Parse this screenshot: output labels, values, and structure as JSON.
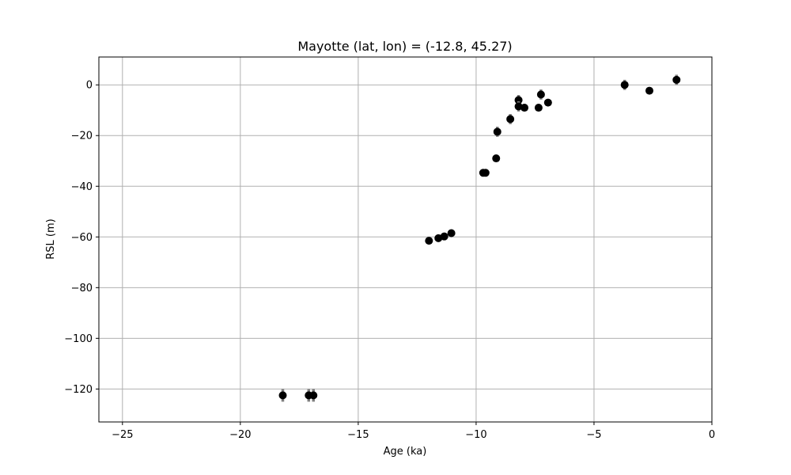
{
  "chart_data": {
    "type": "scatter",
    "title": "Mayotte (lat, lon) = (-12.8, 45.27)",
    "xlabel": "Age (ka)",
    "ylabel": "RSL (m)",
    "xlim": [
      -26,
      0
    ],
    "ylim": [
      -133,
      11
    ],
    "xticks": [
      -25,
      -20,
      -15,
      -10,
      -5,
      0
    ],
    "yticks": [
      -120,
      -100,
      -80,
      -60,
      -40,
      -20,
      0
    ],
    "grid": true,
    "marker_color": "#000000",
    "errorbar_color": "#808080",
    "points": [
      {
        "x": -18.2,
        "y": -122.5,
        "err": 2.5
      },
      {
        "x": -17.1,
        "y": -122.5,
        "err": 2.5
      },
      {
        "x": -16.9,
        "y": -122.5,
        "err": 2.5
      },
      {
        "x": -12.0,
        "y": -61.5,
        "err": 0.8
      },
      {
        "x": -11.6,
        "y": -60.5,
        "err": 0.8
      },
      {
        "x": -11.35,
        "y": -59.8,
        "err": 0.8
      },
      {
        "x": -11.05,
        "y": -58.5,
        "err": 0.8
      },
      {
        "x": -9.7,
        "y": -34.7,
        "err": 1.5
      },
      {
        "x": -9.6,
        "y": -34.7,
        "err": 1.5
      },
      {
        "x": -9.15,
        "y": -29.0,
        "err": 0.8
      },
      {
        "x": -9.1,
        "y": -18.5,
        "err": 2.0
      },
      {
        "x": -8.55,
        "y": -13.5,
        "err": 2.0
      },
      {
        "x": -8.2,
        "y": -6.0,
        "err": 2.0
      },
      {
        "x": -8.2,
        "y": -8.5,
        "err": 2.0
      },
      {
        "x": -7.95,
        "y": -9.0,
        "err": 0.8
      },
      {
        "x": -7.35,
        "y": -9.0,
        "err": 0.8
      },
      {
        "x": -7.25,
        "y": -3.8,
        "err": 2.0
      },
      {
        "x": -6.95,
        "y": -7.0,
        "err": 0.8
      },
      {
        "x": -3.7,
        "y": 0.0,
        "err": 2.0
      },
      {
        "x": -2.65,
        "y": -2.3,
        "err": 0.8
      },
      {
        "x": -1.5,
        "y": 2.0,
        "err": 2.0
      }
    ]
  }
}
